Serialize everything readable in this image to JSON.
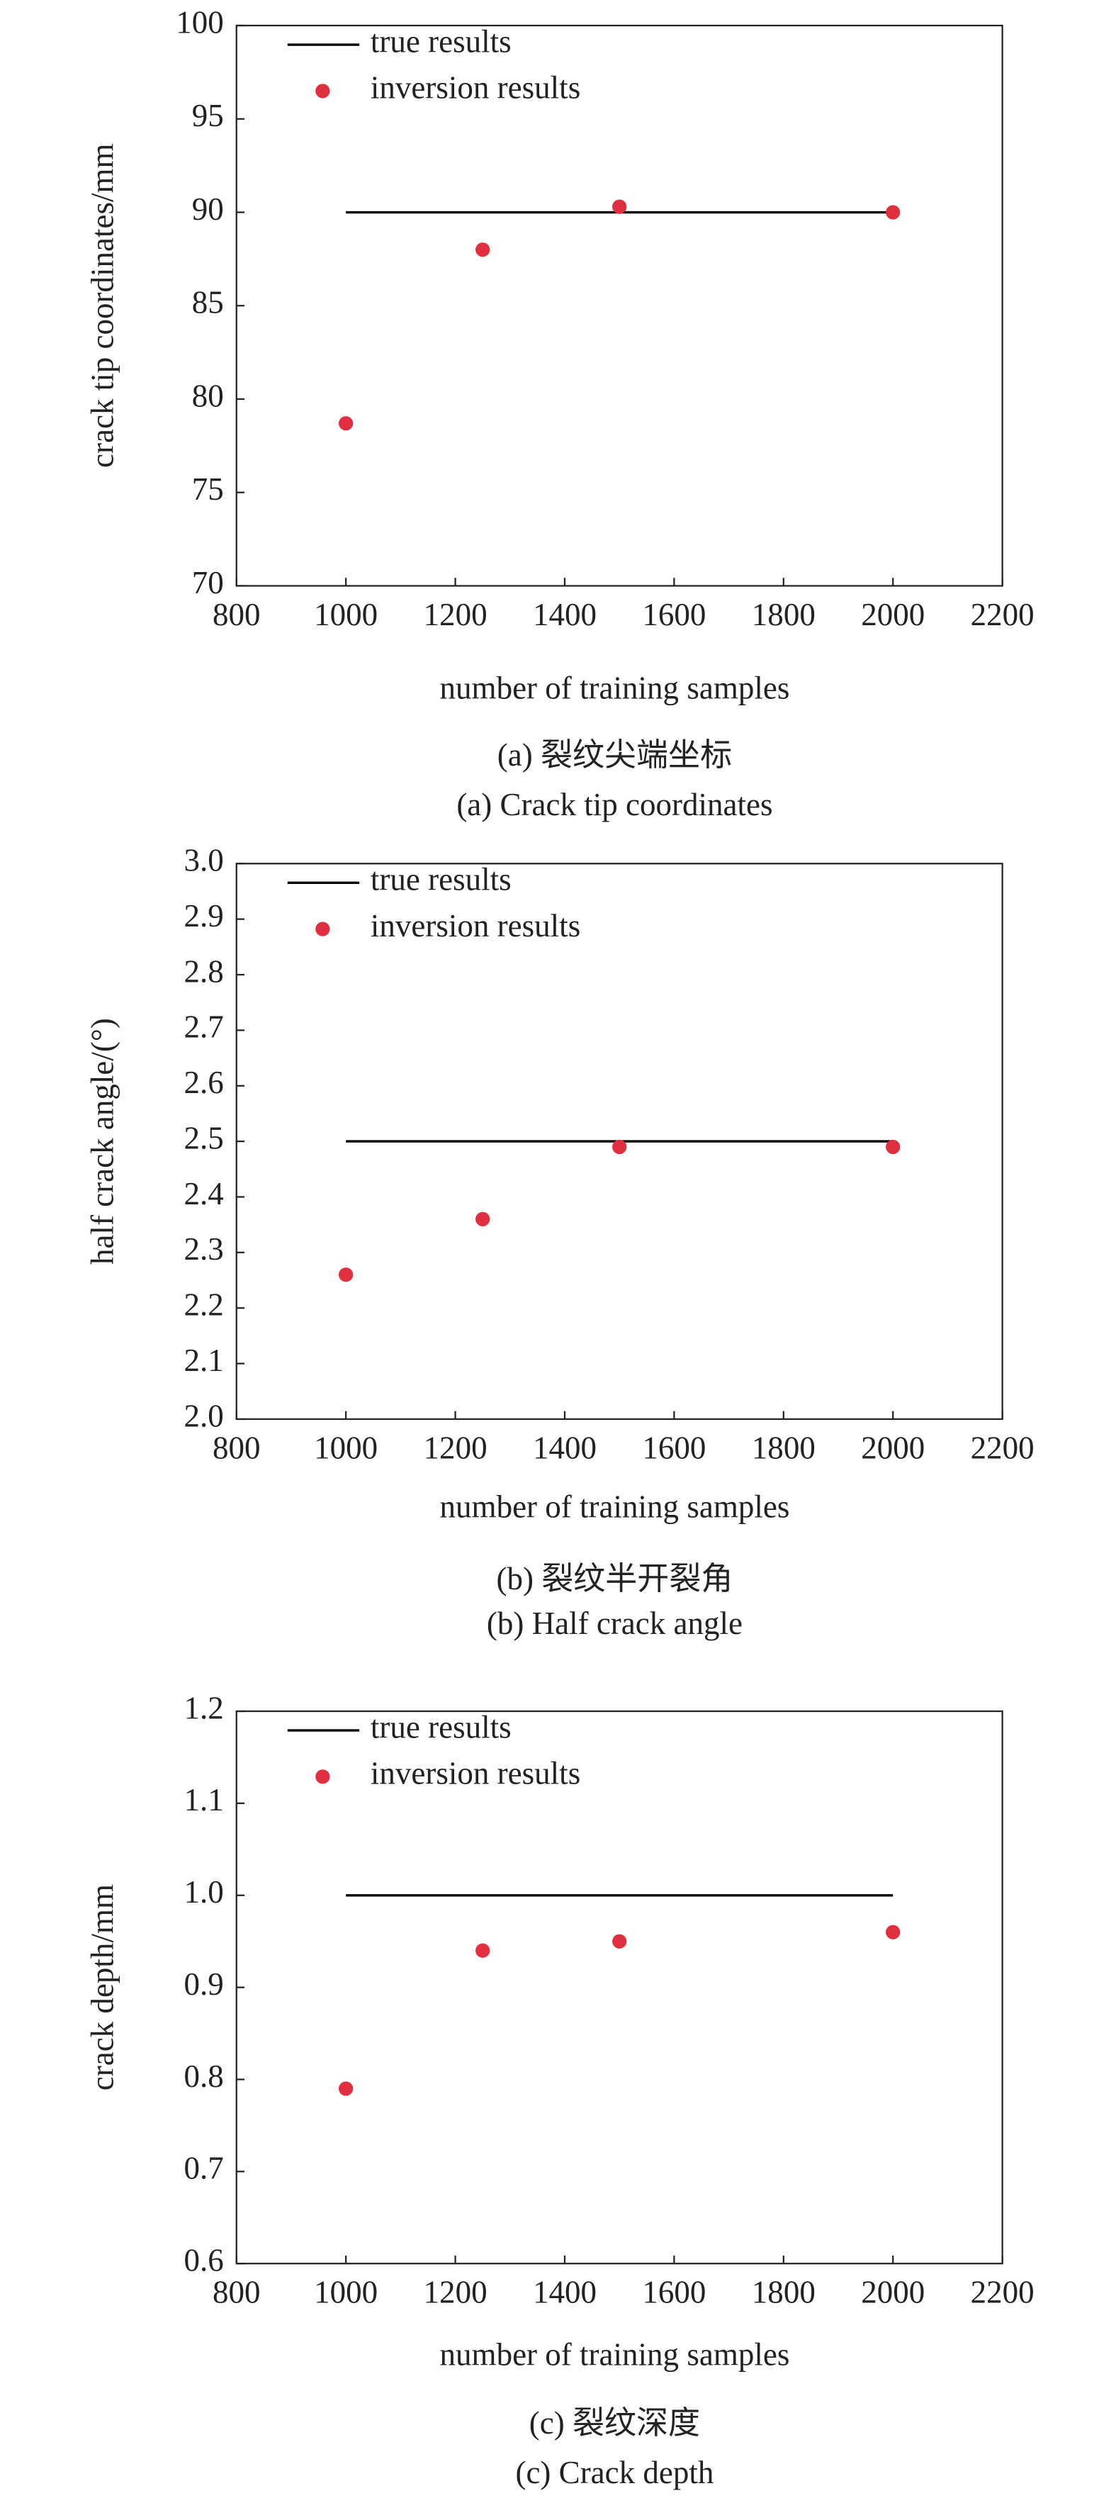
{
  "chart_data": [
    {
      "type": "scatter",
      "x_label": "number of training samples",
      "y_label": "crack tip coordinates/mm",
      "captions": [
        "(a) 裂纹尖端坐标",
        "(a) Crack tip coordinates"
      ],
      "x": [
        1000,
        1250,
        1500,
        2000
      ],
      "series": [
        {
          "name": "true results",
          "color": "#000000",
          "style": "line",
          "values": [
            90,
            90,
            90,
            90
          ]
        },
        {
          "name": "inversion results",
          "color": "#e03040",
          "style": "marker",
          "values": [
            78.7,
            88,
            90.3,
            90
          ]
        }
      ],
      "xlim": [
        800,
        2200
      ],
      "xticks": [
        800,
        1000,
        1200,
        1400,
        1600,
        1800,
        2000,
        2200
      ],
      "ylim": [
        70,
        100
      ],
      "yticks": [
        70,
        75,
        80,
        85,
        90,
        95,
        100
      ]
    },
    {
      "type": "scatter",
      "x_label": "number of training samples",
      "y_label": "half crack angle/(°)",
      "captions": [
        "(b) 裂纹半开裂角",
        "(b) Half crack angle"
      ],
      "x": [
        1000,
        1250,
        1500,
        2000
      ],
      "series": [
        {
          "name": "true results",
          "color": "#000000",
          "style": "line",
          "values": [
            2.5,
            2.5,
            2.5,
            2.5
          ]
        },
        {
          "name": "inversion results",
          "color": "#e03040",
          "style": "marker",
          "values": [
            2.26,
            2.36,
            2.49,
            2.49
          ]
        }
      ],
      "xlim": [
        800,
        2200
      ],
      "xticks": [
        800,
        1000,
        1200,
        1400,
        1600,
        1800,
        2000,
        2200
      ],
      "ylim": [
        2.0,
        3.0
      ],
      "yticks": [
        {
          "value": 2,
          "label": "2.0"
        },
        2.1,
        2.2,
        2.3,
        2.4,
        2.5,
        2.6,
        2.7,
        2.8,
        2.9,
        {
          "value": 3,
          "label": "3.0"
        }
      ]
    },
    {
      "type": "scatter",
      "x_label": "number of training samples",
      "y_label": "crack depth/mm",
      "captions": [
        "(c) 裂纹深度",
        "(c) Crack depth"
      ],
      "x": [
        1000,
        1250,
        1500,
        2000
      ],
      "series": [
        {
          "name": "true results",
          "color": "#000000",
          "style": "line",
          "values": [
            1.0,
            1.0,
            1.0,
            1.0
          ]
        },
        {
          "name": "inversion results",
          "color": "#e03040",
          "style": "marker",
          "values": [
            0.79,
            0.94,
            0.95,
            0.96
          ]
        }
      ],
      "xlim": [
        800,
        2200
      ],
      "xticks": [
        800,
        1000,
        1200,
        1400,
        1600,
        1800,
        2000,
        2200
      ],
      "ylim": [
        0.6,
        1.2
      ],
      "yticks": [
        0.6,
        0.7,
        0.8,
        0.9,
        {
          "value": 1,
          "label": "1.0"
        },
        1.1,
        1.2
      ]
    }
  ]
}
